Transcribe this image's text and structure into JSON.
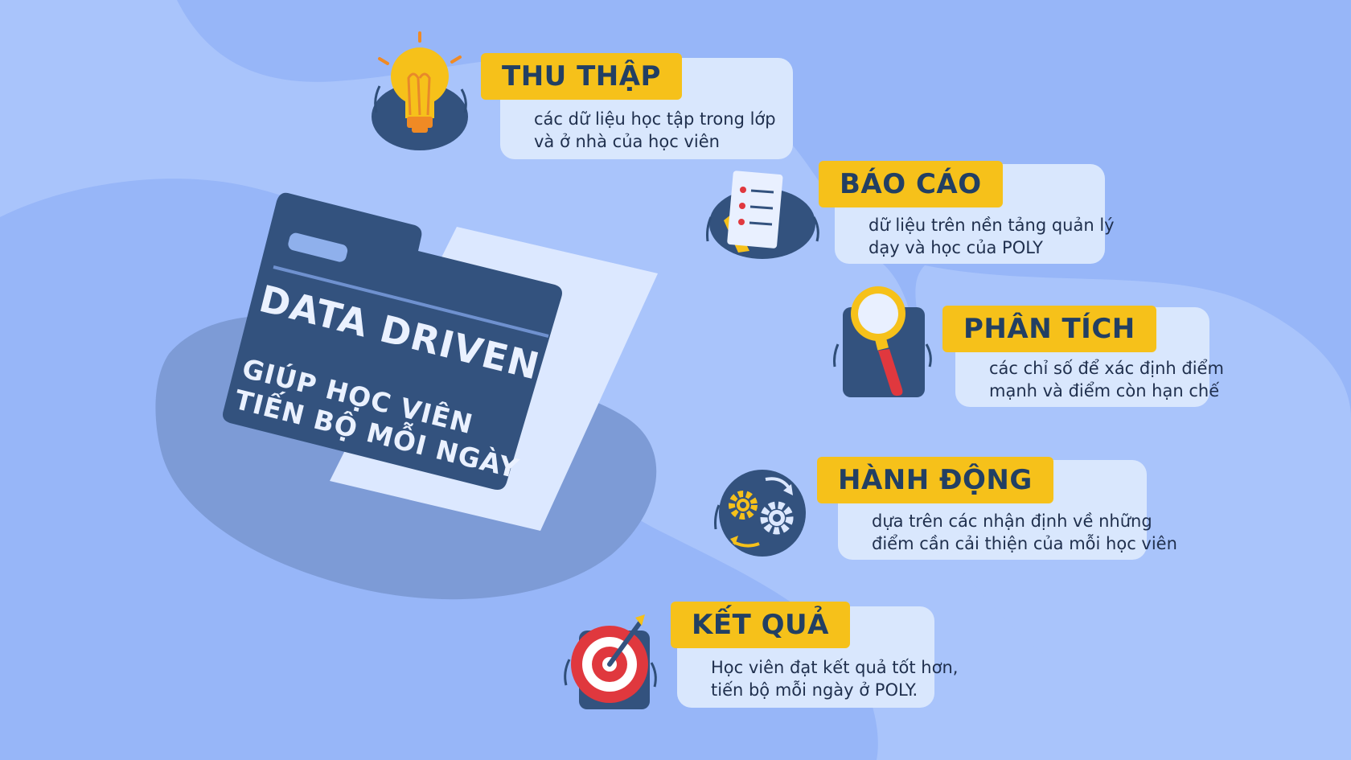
{
  "center": {
    "title": "DATA DRIVEN",
    "subtitle_line1": "GIÚP HỌC VIÊN",
    "subtitle_line2": "TIẾN BỘ MỖI NGÀY"
  },
  "steps": [
    {
      "label": "THU THẬP",
      "line1": "các dữ liệu học tập trong lớp",
      "line2": "và ở nhà của học viên",
      "icon": "lightbulb-icon"
    },
    {
      "label": "BÁO CÁO",
      "line1": "dữ liệu trên nền tảng quản lý",
      "line2": "dạy và học của POLY",
      "icon": "report-document-icon"
    },
    {
      "label": "PHÂN TÍCH",
      "line1": "các chỉ số để xác định điểm",
      "line2": "mạnh và điểm còn hạn chế",
      "icon": "magnifier-icon"
    },
    {
      "label": "HÀNH ĐỘNG",
      "line1": "dựa trên các nhận định về những",
      "line2": "điểm cần cải thiện của mỗi học viên",
      "icon": "gears-icon"
    },
    {
      "label": "KẾT QUẢ",
      "line1": "Học viên đạt kết quả tốt hơn,",
      "line2": "tiến bộ mỗi ngày ở POLY.",
      "icon": "target-icon"
    }
  ],
  "colors": {
    "background": "#a9c4fb",
    "blob": "#97b6f8",
    "navy": "#2f4e78",
    "label_yellow": "#f6c11a",
    "bubble": "#d9e7fd",
    "red": "#e0383e"
  }
}
